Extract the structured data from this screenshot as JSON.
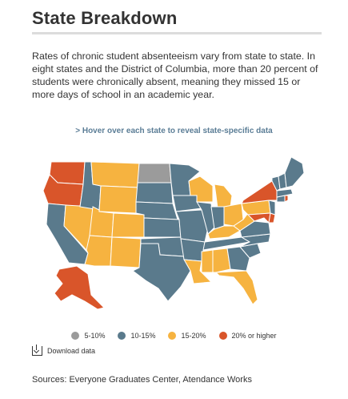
{
  "header": {
    "title": "State Breakdown",
    "intro": "Rates of chronic student absenteeism vary from state to state. In eight states and the District of Columbia, more than 20 percent of students were chronically absent, meaning they missed 15 or more days of school in an academic year."
  },
  "map": {
    "hover_hint": "> Hover over each state to reveal state-specific data",
    "colors": {
      "5-10%": "#9b9b9b",
      "10-15%": "#5a7a8c",
      "15-20%": "#f6b340",
      "20% or higher": "#d9552a"
    },
    "states": {
      "WA": "20% or higher",
      "OR": "20% or higher",
      "ID": "10-15%",
      "MT": "15-20%",
      "WY": "15-20%",
      "ND": "5-10%",
      "SD": "10-15%",
      "NE": "10-15%",
      "MN": "10-15%",
      "IA": "10-15%",
      "WI": "15-20%",
      "IL": "10-15%",
      "MI": "15-20%",
      "IN": "10-15%",
      "OH": "15-20%",
      "PA": "15-20%",
      "NY": "20% or higher",
      "VT": "10-15%",
      "NH": "10-15%",
      "ME": "10-15%",
      "MA": "10-15%",
      "RI": "20% or higher",
      "CT": "10-15%",
      "NJ": "10-15%",
      "DE": "20% or higher",
      "MD": "20% or higher",
      "WV": "15-20%",
      "VA": "10-15%",
      "KY": "15-20%",
      "TN": "10-15%",
      "NC": "10-15%",
      "SC": "10-15%",
      "GA": "10-15%",
      "FL": "15-20%",
      "AL": "15-20%",
      "MS": "15-20%",
      "LA": "15-20%",
      "AR": "10-15%",
      "MO": "10-15%",
      "KS": "10-15%",
      "OK": "10-15%",
      "TX": "10-15%",
      "NM": "15-20%",
      "AZ": "15-20%",
      "UT": "15-20%",
      "CO": "15-20%",
      "NV": "15-20%",
      "CA": "10-15%",
      "AK": "20% or higher"
    }
  },
  "legend": {
    "items": [
      {
        "label": "5-10%",
        "color": "#9b9b9b"
      },
      {
        "label": "10-15%",
        "color": "#5a7a8c"
      },
      {
        "label": "15-20%",
        "color": "#f6b340"
      },
      {
        "label": "20% or higher",
        "color": "#d9552a"
      }
    ]
  },
  "download": {
    "label": "Download data"
  },
  "footer": {
    "sources": "Sources: Everyone Graduates Center, Atendance Works"
  }
}
